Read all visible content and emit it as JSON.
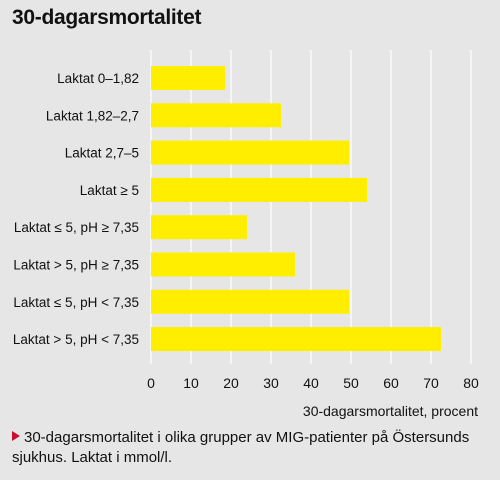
{
  "chart_data": {
    "type": "bar",
    "orientation": "horizontal",
    "title": "30-dagarsmortalitet",
    "xlabel": "30-dagarsmortalitet, procent",
    "categories": [
      "Laktat 0–1,82",
      "Laktat 1,82–2,7",
      "Laktat 2,7–5",
      "Laktat ≥ 5",
      "Laktat ≤ 5, pH ≥ 7,35",
      "Laktat > 5, pH ≥ 7,35",
      "Laktat ≤ 5, pH < 7,35",
      "Laktat > 5, pH < 7,35"
    ],
    "values": [
      18.5,
      32.5,
      49.5,
      54,
      24,
      36,
      49.5,
      72.5
    ],
    "xlim": [
      0,
      80
    ],
    "xticks": [
      "0",
      "10",
      "20",
      "30",
      "40",
      "50",
      "60",
      "70",
      "80"
    ],
    "grid": true,
    "bar_color": "#ffee00",
    "grid_color": "#ffffff"
  },
  "caption": "30-dagarsmortalitet i olika grupper av MIG-patienter på Östersunds sjukhus. Laktat i mmol/l.",
  "colors": {
    "background": "#e6e6e6",
    "marker": "#c8102e"
  }
}
